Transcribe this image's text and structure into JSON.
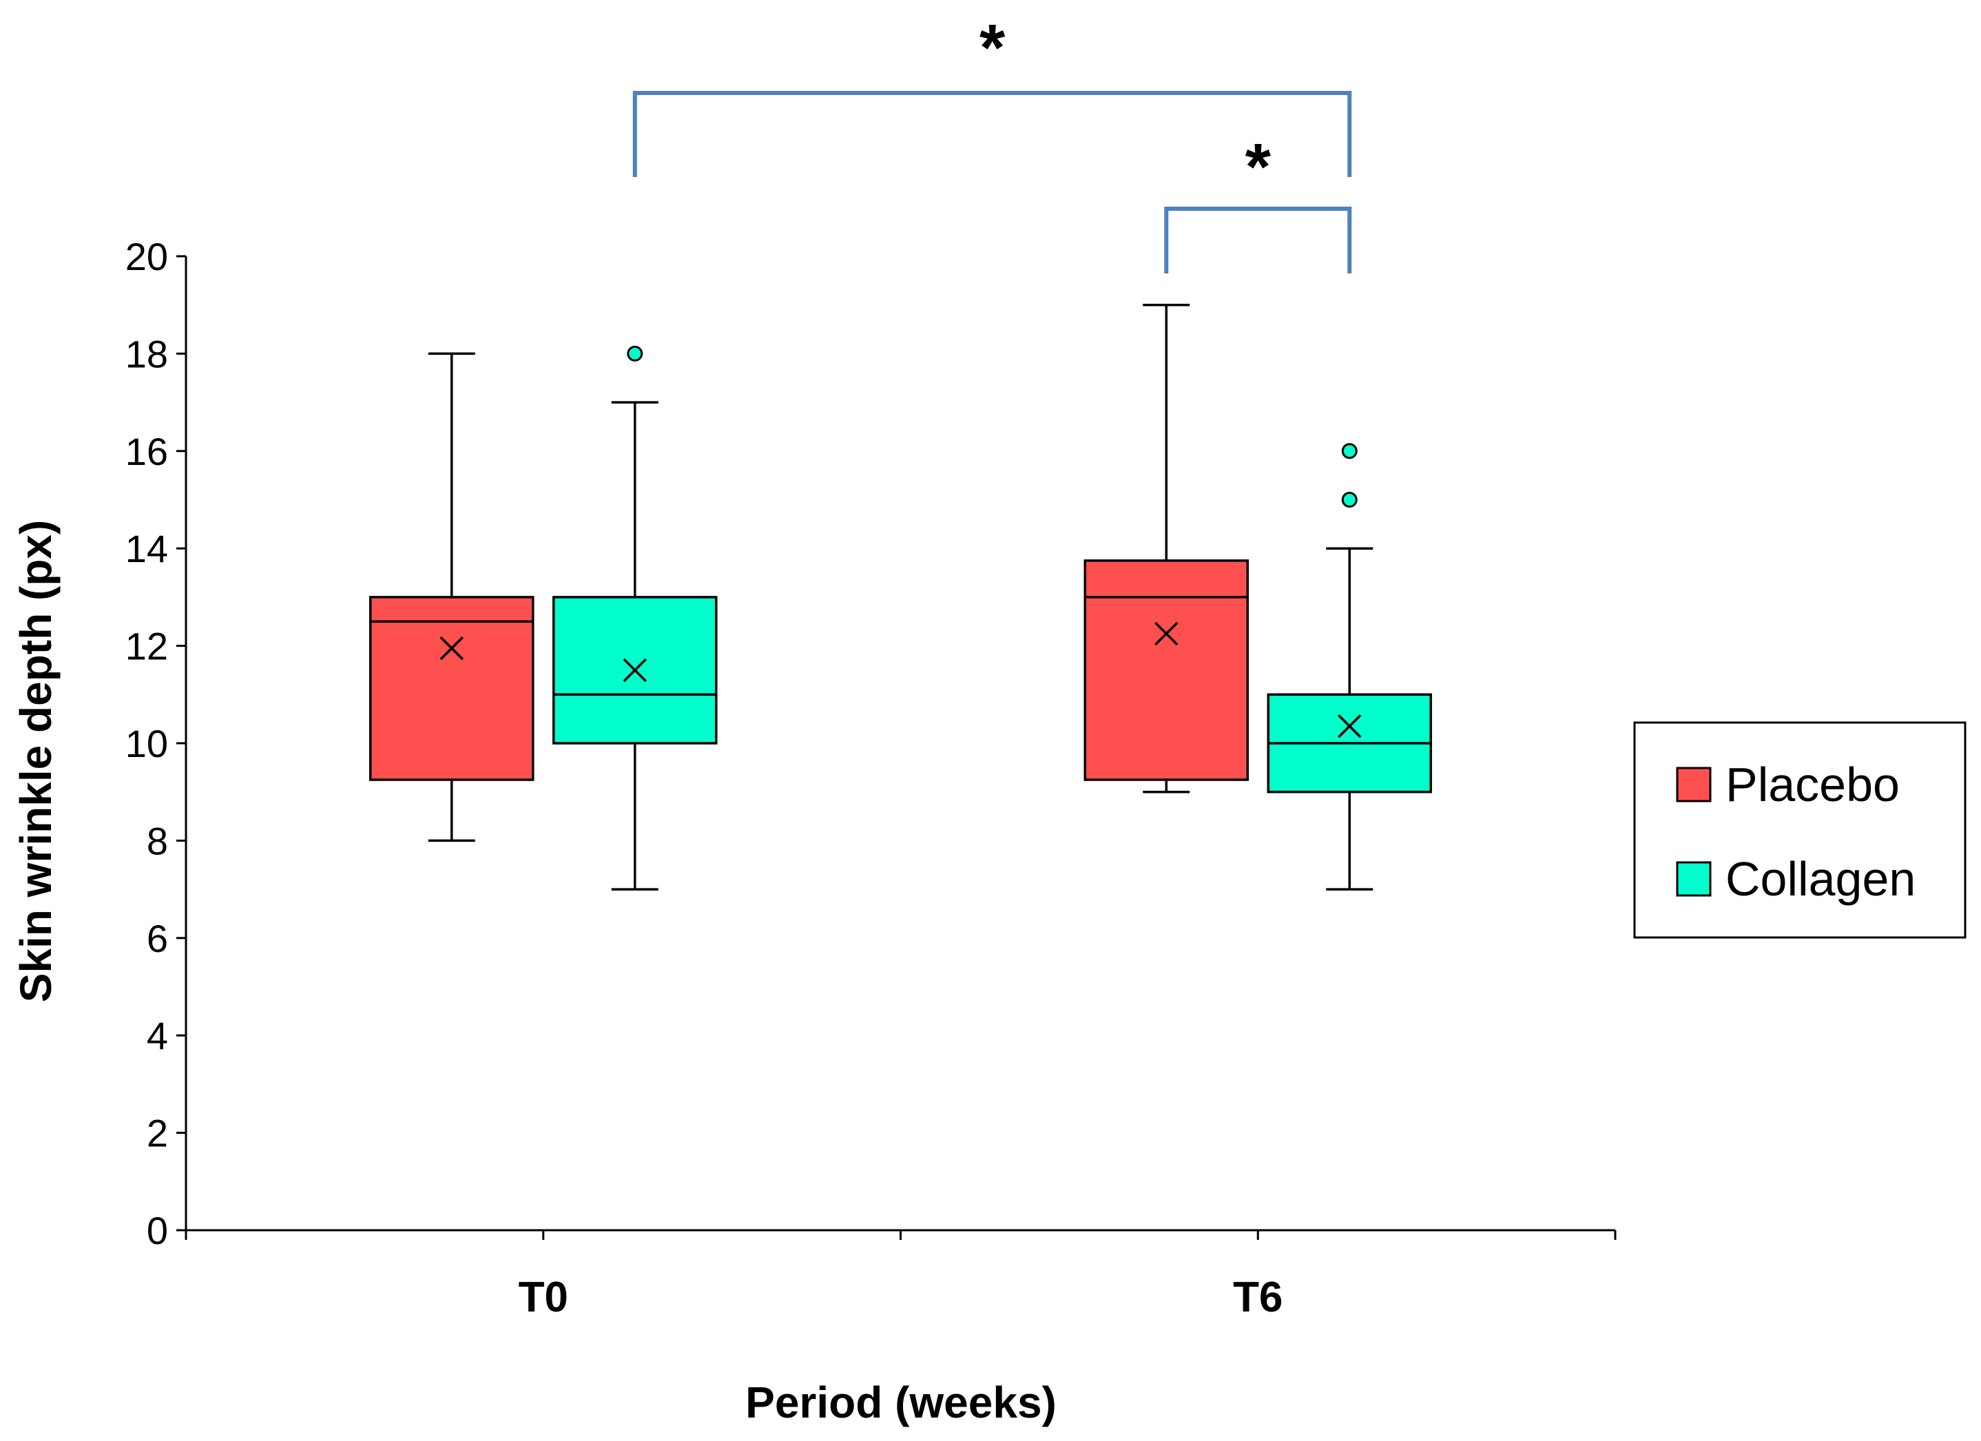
{
  "colors": {
    "placebo": "#ff5050",
    "collagen": "#00ffcc",
    "bracket": "#4f81bd"
  },
  "chart_data": {
    "type": "box",
    "title": "",
    "xlabel": "Period (weeks)",
    "ylabel": "Skin wrinkle depth (px)",
    "ylim": [
      0,
      20
    ],
    "yticks": [
      "0",
      "2",
      "4",
      "6",
      "8",
      "10",
      "12",
      "14",
      "16",
      "18",
      "20"
    ],
    "categories": [
      "T0",
      "T6"
    ],
    "grid": false,
    "legend": {
      "placement": "right",
      "entries": [
        "Placebo",
        "Collagen"
      ]
    },
    "series": [
      {
        "name": "Placebo",
        "boxes": [
          {
            "category": "T0",
            "min": 8,
            "q1": 9.25,
            "median": 12.5,
            "q3": 13,
            "max": 18,
            "mean": 11.95,
            "outliers": []
          },
          {
            "category": "T6",
            "min": 9,
            "q1": 9.25,
            "median": 13,
            "q3": 13.75,
            "max": 19,
            "mean": 12.25,
            "outliers": []
          }
        ]
      },
      {
        "name": "Collagen",
        "boxes": [
          {
            "category": "T0",
            "min": 7,
            "q1": 10,
            "median": 11,
            "q3": 13,
            "max": 17,
            "mean": 11.5,
            "outliers": [
              18
            ]
          },
          {
            "category": "T6",
            "min": 7,
            "q1": 9,
            "median": 10,
            "q3": 11,
            "max": 14,
            "mean": 10.35,
            "outliers": [
              15,
              16
            ]
          }
        ]
      }
    ],
    "annotations": [
      {
        "label": "*",
        "from": "Collagen T0",
        "to": "Collagen T6"
      },
      {
        "label": "*",
        "from": "Placebo T6",
        "to": "Collagen T6"
      }
    ]
  }
}
